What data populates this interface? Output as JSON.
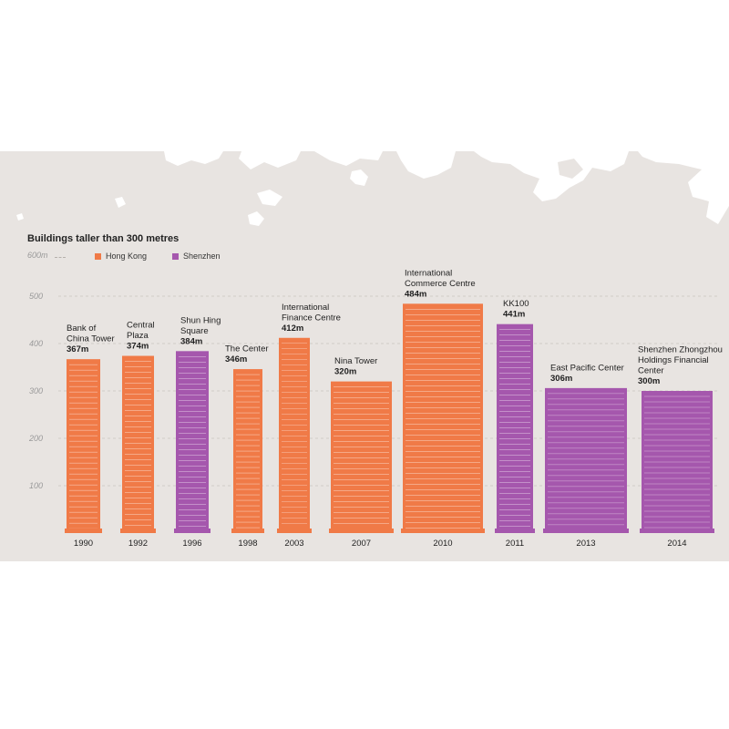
{
  "title": "Buildings taller than 300 metres",
  "legend": [
    {
      "label": "Hong Kong",
      "color": "#f07a47"
    },
    {
      "label": "Shenzhen",
      "color": "#a557ad"
    }
  ],
  "y_top_label": "600m",
  "chart_data": {
    "type": "bar",
    "title": "Buildings taller than 300 metres",
    "yticks": [
      100,
      200,
      300,
      400,
      500
    ],
    "ylim": [
      0,
      600
    ],
    "grid": true,
    "legend_position": "top-left",
    "groups": [
      {
        "year": "1990",
        "buildings": [
          {
            "name": [
              "Bank of",
              "China Tower"
            ],
            "height_label": "367m",
            "value": 367,
            "city": "Hong Kong"
          }
        ]
      },
      {
        "year": "1992",
        "buildings": [
          {
            "name": [
              "Central",
              "Plaza"
            ],
            "height_label": "374m",
            "value": 374,
            "city": "Hong Kong"
          }
        ]
      },
      {
        "year": "1996",
        "buildings": [
          {
            "name": [
              "Shun Hing",
              "Square"
            ],
            "height_label": "384m",
            "value": 384,
            "city": "Shenzhen"
          }
        ]
      },
      {
        "year": "1998",
        "buildings": [
          {
            "name": [
              "The Center"
            ],
            "height_label": "346m",
            "value": 346,
            "city": "Hong Kong"
          }
        ]
      },
      {
        "year": "2003",
        "buildings": [
          {
            "name": [
              "International",
              "Finance Centre"
            ],
            "height_label": "412m",
            "value": 412,
            "city": "Hong Kong"
          }
        ]
      },
      {
        "year": "2007",
        "buildings": [
          {
            "name": [
              "Nina Tower"
            ],
            "height_label": "320m",
            "value": 320,
            "city": "Hong Kong"
          }
        ]
      },
      {
        "year": "2010",
        "buildings": [
          {
            "name": [
              "International",
              "Commerce Centre"
            ],
            "height_label": "484m",
            "value": 484,
            "city": "Hong Kong"
          }
        ]
      },
      {
        "year": "2011",
        "buildings": [
          {
            "name": [
              "KK100"
            ],
            "height_label": "441m",
            "value": 441,
            "city": "Shenzhen"
          }
        ]
      },
      {
        "year": "2013",
        "buildings": [
          {
            "name": [
              "East Pacific Center"
            ],
            "height_label": "306m",
            "value": 306,
            "city": "Shenzhen"
          }
        ]
      },
      {
        "year": "2014",
        "buildings": [
          {
            "name": [
              "Shenzhen Zhongzhou",
              "Holdings Financial",
              "Center"
            ],
            "height_label": "300m",
            "value": 300,
            "city": "Shenzhen"
          }
        ]
      }
    ]
  }
}
